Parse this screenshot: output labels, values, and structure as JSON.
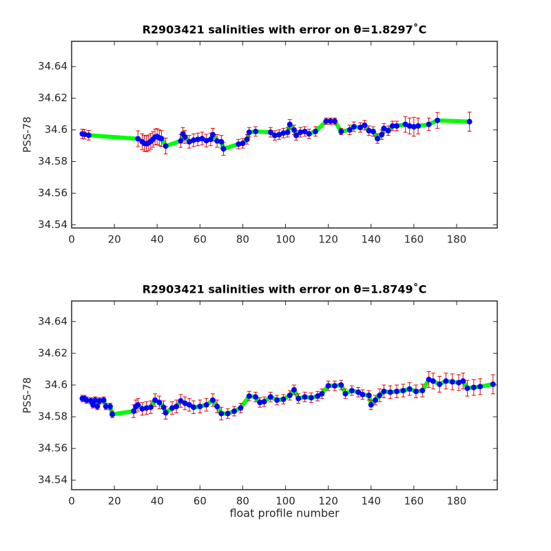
{
  "chart_data": [
    {
      "type": "errorbar",
      "title": "R2903421 salinities with error on θ=1.8297˚C",
      "ylabel": "PSS-78",
      "line_color": "#00ff00",
      "error_color": "#e00000",
      "marker_color": "#0000ff",
      "xlim": [
        0,
        199
      ],
      "xticks": [
        0,
        20,
        40,
        60,
        80,
        100,
        120,
        140,
        160,
        180
      ],
      "ylim": [
        34.538,
        34.656
      ],
      "yticks": [
        34.54,
        34.56,
        34.58,
        34.6,
        34.62,
        34.64
      ],
      "x": [
        5,
        6,
        8,
        31,
        33,
        34,
        35,
        36,
        37,
        38,
        39,
        40,
        41,
        42,
        44,
        51,
        52,
        53,
        55,
        57,
        59,
        61,
        63,
        65,
        66,
        68,
        70,
        71,
        78,
        80,
        82,
        83,
        86,
        93,
        95,
        97,
        99,
        101,
        102,
        104,
        105,
        107,
        109,
        111,
        114,
        119,
        121,
        123,
        126,
        130,
        132,
        135,
        137,
        139,
        141,
        143,
        145,
        146,
        148,
        150,
        152,
        156,
        158,
        160,
        162,
        167,
        171,
        186
      ],
      "values": [
        34.5975,
        34.5972,
        34.5966,
        34.5944,
        34.5925,
        34.5915,
        34.5912,
        34.5918,
        34.5928,
        34.594,
        34.5955,
        34.5958,
        34.595,
        34.5945,
        34.5898,
        34.593,
        34.5975,
        34.5955,
        34.5925,
        34.5935,
        34.594,
        34.5945,
        34.5932,
        34.594,
        34.597,
        34.593,
        34.5925,
        34.588,
        34.591,
        34.5915,
        34.594,
        34.5985,
        34.599,
        34.5985,
        34.5965,
        34.597,
        34.598,
        34.5985,
        34.6035,
        34.6,
        34.5965,
        34.5985,
        34.599,
        34.5975,
        34.599,
        34.6055,
        34.6055,
        34.6055,
        34.599,
        34.6,
        34.602,
        34.6015,
        34.603,
        34.5995,
        34.599,
        34.5945,
        34.597,
        34.601,
        34.5995,
        34.6025,
        34.6025,
        34.6035,
        34.6025,
        34.602,
        34.6025,
        34.6035,
        34.606,
        34.6052
      ],
      "errors": [
        0.003,
        0.003,
        0.003,
        0.005,
        0.005,
        0.005,
        0.005,
        0.005,
        0.005,
        0.005,
        0.005,
        0.005,
        0.005,
        0.005,
        0.005,
        0.004,
        0.004,
        0.004,
        0.004,
        0.004,
        0.004,
        0.004,
        0.004,
        0.004,
        0.004,
        0.004,
        0.004,
        0.004,
        0.003,
        0.003,
        0.003,
        0.003,
        0.003,
        0.003,
        0.003,
        0.003,
        0.003,
        0.003,
        0.003,
        0.003,
        0.003,
        0.003,
        0.003,
        0.003,
        0.003,
        0.002,
        0.002,
        0.002,
        0.002,
        0.003,
        0.003,
        0.003,
        0.003,
        0.003,
        0.003,
        0.003,
        0.003,
        0.003,
        0.003,
        0.003,
        0.003,
        0.005,
        0.005,
        0.006,
        0.005,
        0.004,
        0.005,
        0.006
      ]
    },
    {
      "type": "errorbar",
      "title": "R2903421 salinities with error on θ=1.8749˚C",
      "ylabel": "PSS-78",
      "xlabel": "float profile number",
      "line_color": "#00ff00",
      "error_color": "#e00000",
      "marker_color": "#0000ff",
      "xlim": [
        0,
        199
      ],
      "xticks": [
        0,
        20,
        40,
        60,
        80,
        100,
        120,
        140,
        160,
        180
      ],
      "ylim": [
        34.534,
        34.653
      ],
      "yticks": [
        34.54,
        34.56,
        34.58,
        34.6,
        34.62,
        34.64
      ],
      "x": [
        5,
        6,
        7,
        9,
        10,
        11,
        12,
        13,
        15,
        16,
        18,
        19,
        29,
        30,
        31,
        33,
        35,
        37,
        39,
        41,
        43,
        44,
        47,
        49,
        51,
        53,
        55,
        57,
        60,
        63,
        66,
        68,
        70,
        73,
        76,
        79,
        83,
        86,
        88,
        90,
        93,
        96,
        99,
        102,
        104,
        106,
        109,
        112,
        115,
        117,
        120,
        123,
        126,
        128,
        131,
        134,
        136,
        139,
        140,
        142,
        144,
        146,
        149,
        152,
        155,
        158,
        161,
        164,
        167,
        169,
        172,
        175,
        178,
        181,
        183,
        185,
        188,
        191,
        197
      ],
      "values": [
        34.5915,
        34.5915,
        34.5905,
        34.59,
        34.5875,
        34.5905,
        34.5865,
        34.59,
        34.5905,
        34.5865,
        34.5865,
        34.5815,
        34.5835,
        34.5865,
        34.5875,
        34.585,
        34.5855,
        34.586,
        34.5905,
        34.589,
        34.586,
        34.5825,
        34.5855,
        34.5865,
        34.59,
        34.5885,
        34.5875,
        34.586,
        34.5865,
        34.5875,
        34.5905,
        34.5865,
        34.582,
        34.582,
        34.5835,
        34.5855,
        34.593,
        34.5925,
        34.589,
        34.5895,
        34.5925,
        34.5905,
        34.591,
        34.5935,
        34.597,
        34.5915,
        34.5925,
        34.592,
        34.593,
        34.5945,
        34.5995,
        34.5995,
        34.6,
        34.5945,
        34.5965,
        34.5955,
        34.594,
        34.5935,
        34.5875,
        34.5905,
        34.5935,
        34.596,
        34.5955,
        34.596,
        34.5965,
        34.5975,
        34.596,
        34.5965,
        34.6035,
        34.6025,
        34.6005,
        34.6025,
        34.602,
        34.6015,
        34.6025,
        34.598,
        34.5985,
        34.599,
        34.6005
      ],
      "errors": [
        0.002,
        0.002,
        0.002,
        0.002,
        0.002,
        0.002,
        0.002,
        0.002,
        0.002,
        0.002,
        0.002,
        0.002,
        0.004,
        0.004,
        0.004,
        0.004,
        0.004,
        0.004,
        0.004,
        0.004,
        0.004,
        0.004,
        0.004,
        0.004,
        0.004,
        0.004,
        0.004,
        0.004,
        0.004,
        0.004,
        0.004,
        0.004,
        0.004,
        0.003,
        0.003,
        0.003,
        0.003,
        0.003,
        0.003,
        0.003,
        0.003,
        0.003,
        0.003,
        0.003,
        0.003,
        0.003,
        0.003,
        0.003,
        0.003,
        0.003,
        0.003,
        0.003,
        0.003,
        0.003,
        0.003,
        0.003,
        0.003,
        0.003,
        0.003,
        0.003,
        0.004,
        0.004,
        0.004,
        0.004,
        0.004,
        0.004,
        0.004,
        0.004,
        0.005,
        0.005,
        0.005,
        0.005,
        0.005,
        0.005,
        0.005,
        0.005,
        0.005,
        0.005,
        0.006
      ]
    }
  ]
}
